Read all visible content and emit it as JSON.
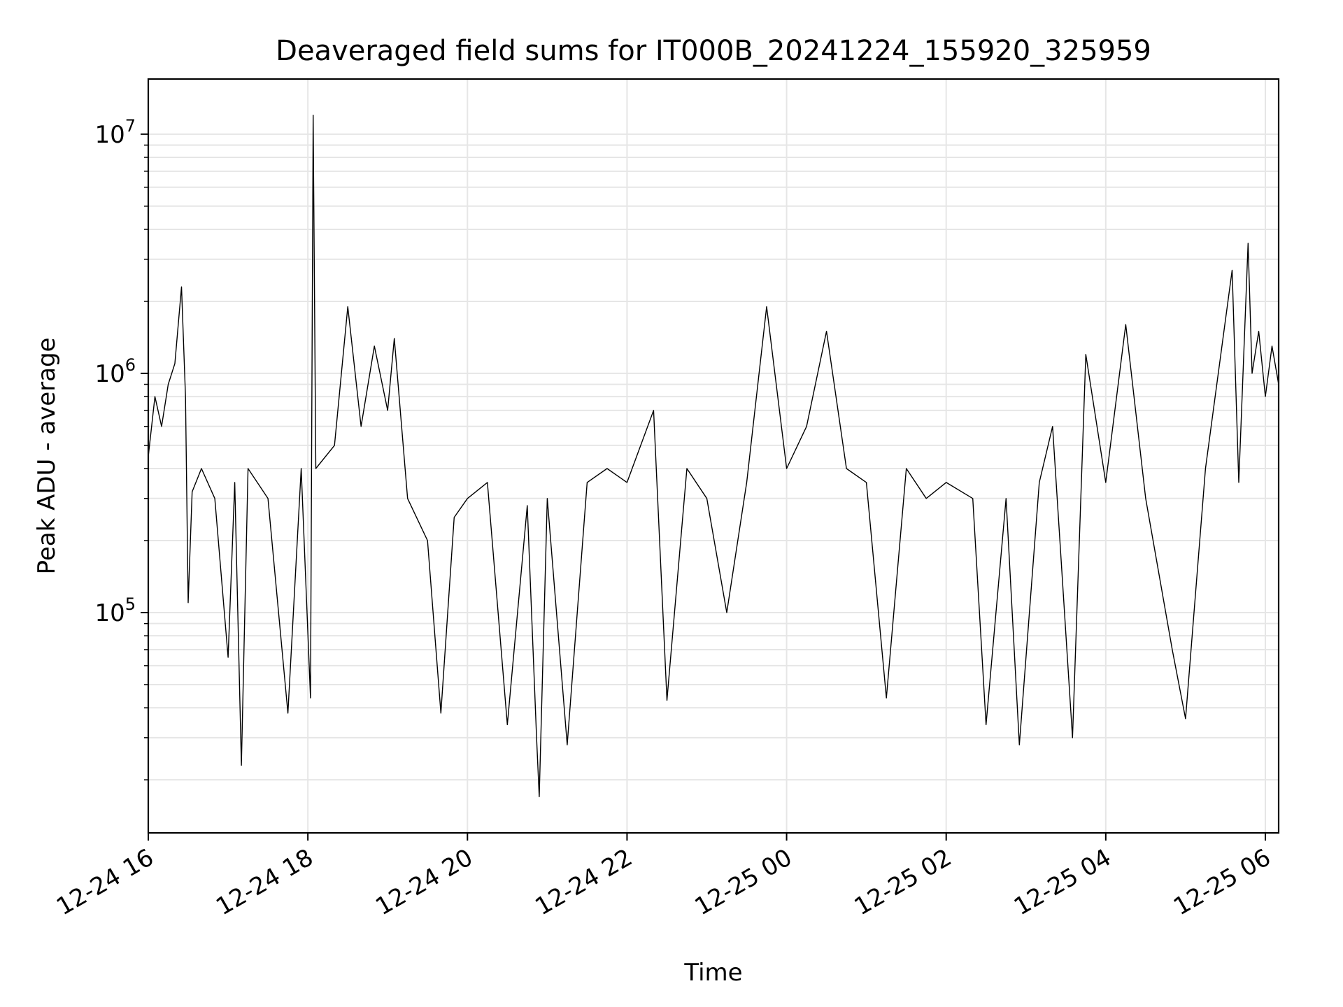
{
  "chart_data": {
    "type": "line",
    "title": "Deaveraged field sums for IT000B_20241224_155920_325959",
    "xlabel": "Time",
    "ylabel": "Peak ADU - average",
    "x_range": [
      "2024-12-24T16:00",
      "2024-12-25T06:10"
    ],
    "yscale": "log",
    "ylim": [
      12000,
      17000000
    ],
    "grid": true,
    "line_color": "#000000",
    "grid_color": "#e6e6e6",
    "x_ticks": [
      {
        "label": "12-24 16",
        "time": "2024-12-24T16:00"
      },
      {
        "label": "12-24 18",
        "time": "2024-12-24T18:00"
      },
      {
        "label": "12-24 20",
        "time": "2024-12-24T20:00"
      },
      {
        "label": "12-24 22",
        "time": "2024-12-24T22:00"
      },
      {
        "label": "12-25 00",
        "time": "2024-12-25T00:00"
      },
      {
        "label": "12-25 02",
        "time": "2024-12-25T02:00"
      },
      {
        "label": "12-25 04",
        "time": "2024-12-25T04:00"
      },
      {
        "label": "12-25 06",
        "time": "2024-12-25T06:00"
      }
    ],
    "y_ticks": [
      {
        "base": "10",
        "exp": "5",
        "value": 100000
      },
      {
        "base": "10",
        "exp": "6",
        "value": 1000000
      },
      {
        "base": "10",
        "exp": "7",
        "value": 10000000
      }
    ],
    "series": [
      {
        "points": [
          [
            "2024-12-24T16:00",
            450000
          ],
          [
            "2024-12-24T16:05",
            800000
          ],
          [
            "2024-12-24T16:10",
            600000
          ],
          [
            "2024-12-24T16:15",
            900000
          ],
          [
            "2024-12-24T16:20",
            1100000
          ],
          [
            "2024-12-24T16:25",
            2300000
          ],
          [
            "2024-12-24T16:28",
            800000
          ],
          [
            "2024-12-24T16:30",
            110000
          ],
          [
            "2024-12-24T16:33",
            320000
          ],
          [
            "2024-12-24T16:40",
            400000
          ],
          [
            "2024-12-24T16:50",
            300000
          ],
          [
            "2024-12-24T17:00",
            65000
          ],
          [
            "2024-12-24T17:05",
            350000
          ],
          [
            "2024-12-24T17:10",
            23000
          ],
          [
            "2024-12-24T17:15",
            400000
          ],
          [
            "2024-12-24T17:30",
            300000
          ],
          [
            "2024-12-24T17:45",
            38000
          ],
          [
            "2024-12-24T17:55",
            400000
          ],
          [
            "2024-12-24T18:02",
            44000
          ],
          [
            "2024-12-24T18:04",
            12000000
          ],
          [
            "2024-12-24T18:06",
            400000
          ],
          [
            "2024-12-24T18:20",
            500000
          ],
          [
            "2024-12-24T18:30",
            1900000
          ],
          [
            "2024-12-24T18:40",
            600000
          ],
          [
            "2024-12-24T18:50",
            1300000
          ],
          [
            "2024-12-24T19:00",
            700000
          ],
          [
            "2024-12-24T19:05",
            1400000
          ],
          [
            "2024-12-24T19:15",
            300000
          ],
          [
            "2024-12-24T19:30",
            200000
          ],
          [
            "2024-12-24T19:40",
            38000
          ],
          [
            "2024-12-24T19:50",
            250000
          ],
          [
            "2024-12-24T20:00",
            300000
          ],
          [
            "2024-12-24T20:15",
            350000
          ],
          [
            "2024-12-24T20:30",
            34000
          ],
          [
            "2024-12-24T20:45",
            280000
          ],
          [
            "2024-12-24T20:52",
            30000
          ],
          [
            "2024-12-24T20:54",
            17000
          ],
          [
            "2024-12-24T21:00",
            300000
          ],
          [
            "2024-12-24T21:15",
            28000
          ],
          [
            "2024-12-24T21:30",
            350000
          ],
          [
            "2024-12-24T21:45",
            400000
          ],
          [
            "2024-12-24T22:00",
            350000
          ],
          [
            "2024-12-24T22:20",
            700000
          ],
          [
            "2024-12-24T22:30",
            43000
          ],
          [
            "2024-12-24T22:45",
            400000
          ],
          [
            "2024-12-24T23:00",
            300000
          ],
          [
            "2024-12-24T23:15",
            100000
          ],
          [
            "2024-12-24T23:30",
            350000
          ],
          [
            "2024-12-24T23:45",
            1900000
          ],
          [
            "2024-12-25T00:00",
            400000
          ],
          [
            "2024-12-25T00:15",
            600000
          ],
          [
            "2024-12-25T00:30",
            1500000
          ],
          [
            "2024-12-25T00:45",
            400000
          ],
          [
            "2024-12-25T01:00",
            350000
          ],
          [
            "2024-12-25T01:15",
            44000
          ],
          [
            "2024-12-25T01:30",
            400000
          ],
          [
            "2024-12-25T01:45",
            300000
          ],
          [
            "2024-12-25T02:00",
            350000
          ],
          [
            "2024-12-25T02:20",
            300000
          ],
          [
            "2024-12-25T02:30",
            34000
          ],
          [
            "2024-12-25T02:45",
            300000
          ],
          [
            "2024-12-25T02:55",
            28000
          ],
          [
            "2024-12-25T03:10",
            350000
          ],
          [
            "2024-12-25T03:20",
            600000
          ],
          [
            "2024-12-25T03:35",
            30000
          ],
          [
            "2024-12-25T03:45",
            1200000
          ],
          [
            "2024-12-25T04:00",
            350000
          ],
          [
            "2024-12-25T04:15",
            1600000
          ],
          [
            "2024-12-25T04:30",
            300000
          ],
          [
            "2024-12-25T04:50",
            70000
          ],
          [
            "2024-12-25T05:00",
            36000
          ],
          [
            "2024-12-25T05:15",
            400000
          ],
          [
            "2024-12-25T05:35",
            2700000
          ],
          [
            "2024-12-25T05:40",
            350000
          ],
          [
            "2024-12-25T05:47",
            3500000
          ],
          [
            "2024-12-25T05:50",
            1000000
          ],
          [
            "2024-12-25T05:55",
            1500000
          ],
          [
            "2024-12-25T06:00",
            800000
          ],
          [
            "2024-12-25T06:05",
            1300000
          ],
          [
            "2024-12-25T06:10",
            900000
          ]
        ]
      }
    ]
  }
}
